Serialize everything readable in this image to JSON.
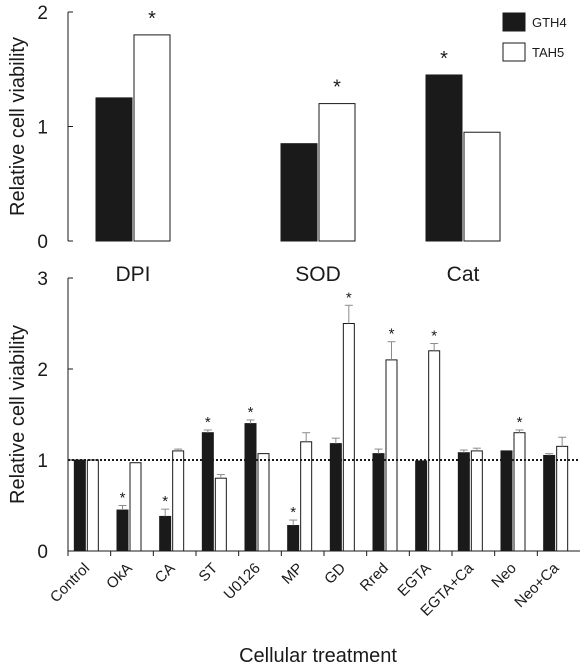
{
  "chart_data": [
    {
      "type": "bar",
      "ylabel": "Relative cell viability",
      "xlabel": "",
      "ylim": [
        0,
        2
      ],
      "yticks": [
        "0",
        "1",
        "2"
      ],
      "categories": [
        "DPI",
        "SOD",
        "Cat"
      ],
      "series": [
        {
          "name": "GTH4",
          "color": "#1a1a1a",
          "values": [
            1.25,
            0.85,
            1.45
          ]
        },
        {
          "name": "TAH5",
          "color": "#ffffff",
          "values": [
            1.8,
            1.2,
            0.95
          ]
        }
      ],
      "significance": [
        {
          "category": "DPI",
          "series": "TAH5",
          "label": "*"
        },
        {
          "category": "SOD",
          "series": "TAH5",
          "label": "*"
        },
        {
          "category": "Cat",
          "series": "GTH4",
          "label": "*"
        }
      ],
      "legend": {
        "position": "top-right",
        "entries": [
          "GTH4",
          "TAH5"
        ]
      }
    },
    {
      "type": "bar",
      "ylabel": "Relative cell viability",
      "xlabel": "Cellular treatment",
      "ylim": [
        0,
        3
      ],
      "yticks": [
        "0",
        "1",
        "2",
        "3"
      ],
      "reference_line": 1,
      "categories": [
        "Control",
        "OkA",
        "CA",
        "ST",
        "U0126",
        "MP",
        "GD",
        "Rred",
        "EGTA",
        "EGTA+Ca",
        "Neo",
        "Neo+Ca"
      ],
      "series": [
        {
          "name": "GTH4",
          "color": "#1a1a1a",
          "values": [
            1.0,
            0.45,
            0.38,
            1.3,
            1.4,
            0.28,
            1.18,
            1.07,
            0.99,
            1.08,
            1.1,
            1.05
          ],
          "errors": [
            0.0,
            0.05,
            0.08,
            0.03,
            0.04,
            0.06,
            0.06,
            0.05,
            0.0,
            0.03,
            0.0,
            0.02
          ]
        },
        {
          "name": "TAH5",
          "color": "#ffffff",
          "values": [
            1.0,
            0.97,
            1.1,
            0.8,
            1.07,
            1.2,
            2.5,
            2.1,
            2.2,
            1.1,
            1.3,
            1.15
          ],
          "errors": [
            0.0,
            0.0,
            0.02,
            0.04,
            0.0,
            0.1,
            0.2,
            0.2,
            0.08,
            0.03,
            0.03,
            0.1
          ]
        }
      ],
      "significance": [
        {
          "category": "OkA",
          "series": "GTH4",
          "label": "*"
        },
        {
          "category": "CA",
          "series": "GTH4",
          "label": "*"
        },
        {
          "category": "ST",
          "series": "GTH4",
          "label": "*"
        },
        {
          "category": "U0126",
          "series": "GTH4",
          "label": "*"
        },
        {
          "category": "MP",
          "series": "GTH4",
          "label": "*"
        },
        {
          "category": "GD",
          "series": "TAH5",
          "label": "*"
        },
        {
          "category": "Rred",
          "series": "TAH5",
          "label": "*"
        },
        {
          "category": "EGTA",
          "series": "TAH5",
          "label": "*"
        },
        {
          "category": "Neo",
          "series": "TAH5",
          "label": "*"
        }
      ]
    }
  ]
}
